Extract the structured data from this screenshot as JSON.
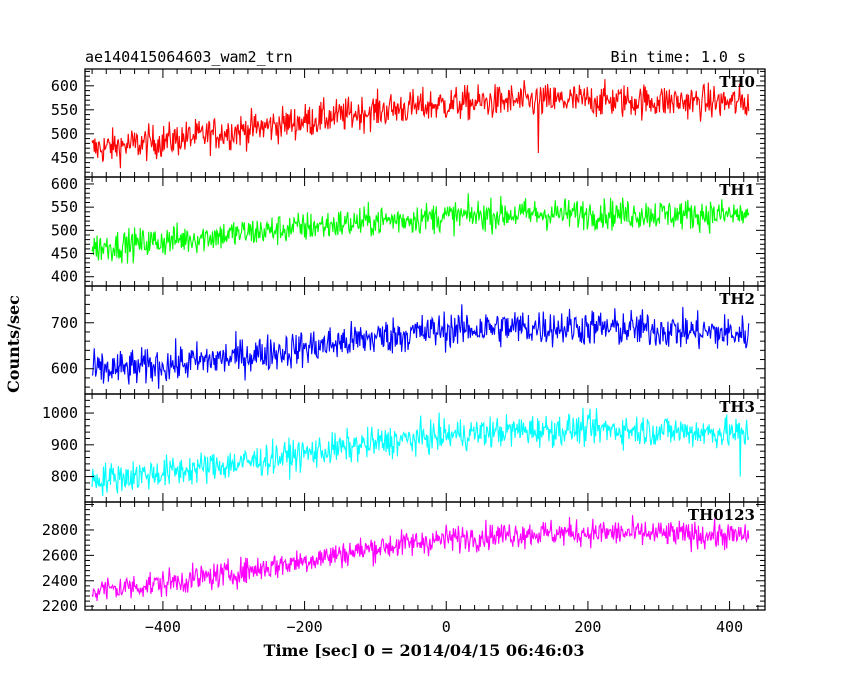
{
  "header": {
    "left": "ae140415064603_wam2_trn",
    "right": "Bin time: 1.0 s"
  },
  "chart_data": {
    "type": "line",
    "x_axis": {
      "label": "Time [sec] 0 = 2014/04/15 06:46:03",
      "range": [
        -510,
        450
      ],
      "ticks": [
        -400,
        -200,
        0,
        200,
        400
      ],
      "tick_labels": [
        "−400",
        "−200",
        "0",
        "200",
        "400"
      ]
    },
    "y_axis_label": "Counts/sec",
    "x_start": -500,
    "x_end": 427,
    "bin_time_s": 1.0,
    "panels": [
      {
        "name": "TH0",
        "color": "#ff0000",
        "ylim": [
          410,
          635
        ],
        "yticks": [
          450,
          500,
          550,
          600
        ],
        "trend_x": [
          -500,
          -400,
          -300,
          -200,
          -100,
          0,
          100,
          200,
          300,
          427
        ],
        "trend_y": [
          468,
          485,
          505,
          527,
          548,
          562,
          568,
          570,
          568,
          565
        ],
        "noise_amp": 32,
        "dips": [
          {
            "x": 130,
            "y": 460
          }
        ]
      },
      {
        "name": "TH1",
        "color": "#00ff00",
        "ylim": [
          380,
          615
        ],
        "yticks": [
          400,
          450,
          500,
          550,
          600
        ],
        "trend_x": [
          -500,
          -400,
          -300,
          -200,
          -100,
          0,
          100,
          200,
          300,
          427
        ],
        "trend_y": [
          462,
          477,
          492,
          507,
          520,
          530,
          535,
          536,
          535,
          533
        ],
        "noise_amp": 30,
        "dips": []
      },
      {
        "name": "TH2",
        "color": "#0000ff",
        "ylim": [
          545,
          780
        ],
        "yticks": [
          600,
          700
        ],
        "trend_x": [
          -500,
          -400,
          -300,
          -200,
          -100,
          0,
          100,
          200,
          300,
          427
        ],
        "trend_y": [
          595,
          607,
          625,
          645,
          668,
          685,
          690,
          690,
          685,
          675
        ],
        "noise_amp": 36,
        "dips": []
      },
      {
        "name": "TH3",
        "color": "#00ffff",
        "ylim": [
          720,
          1060
        ],
        "yticks": [
          800,
          900,
          1000
        ],
        "trend_x": [
          -500,
          -400,
          -300,
          -200,
          -100,
          0,
          100,
          200,
          300,
          427
        ],
        "trend_y": [
          790,
          812,
          840,
          872,
          905,
          930,
          945,
          950,
          945,
          935
        ],
        "noise_amp": 45,
        "dips": [
          {
            "x": 415,
            "y": 800
          }
        ]
      },
      {
        "name": "TH0123",
        "color": "#ff00ff",
        "ylim": [
          2170,
          3020
        ],
        "yticks": [
          2200,
          2400,
          2600,
          2800
        ],
        "ytick_labels": [
          "2200",
          "2400",
          "2600",
          "2800"
        ],
        "trend_x": [
          -500,
          -400,
          -300,
          -200,
          -100,
          0,
          100,
          200,
          300,
          427
        ],
        "trend_y": [
          2320,
          2380,
          2460,
          2560,
          2660,
          2730,
          2770,
          2780,
          2770,
          2750
        ],
        "noise_amp": 95,
        "dips": []
      }
    ]
  }
}
